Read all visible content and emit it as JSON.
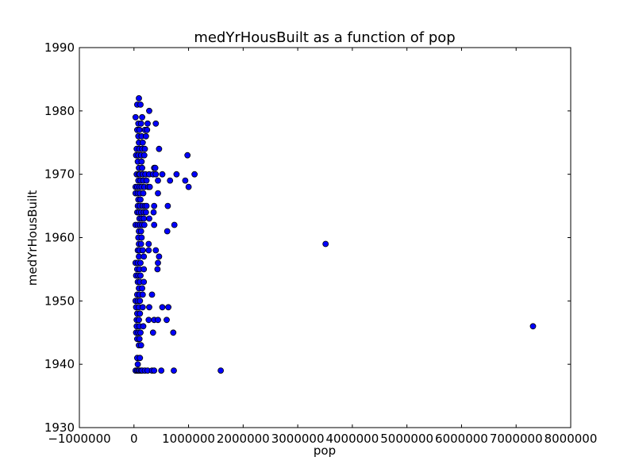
{
  "chart_data": {
    "type": "scatter",
    "title": "medYrHousBuilt as a function of pop",
    "xlabel": "pop",
    "ylabel": "medYrHousBuilt",
    "xlim": [
      -1000000,
      8000000
    ],
    "ylim": [
      1930,
      1990
    ],
    "xticks": [
      -1000000,
      0,
      1000000,
      2000000,
      3000000,
      4000000,
      5000000,
      6000000,
      7000000,
      8000000
    ],
    "yticks": [
      1930,
      1940,
      1950,
      1960,
      1970,
      1980,
      1990
    ],
    "grid": false,
    "marker_color": "#0000ff",
    "marker_edge_color": "#000000",
    "points": [
      [
        60000,
        1981
      ],
      [
        120000,
        1981
      ],
      [
        90000,
        1982
      ],
      [
        280000,
        1980
      ],
      [
        30000,
        1979
      ],
      [
        150000,
        1979
      ],
      [
        80000,
        1978
      ],
      [
        130000,
        1978
      ],
      [
        250000,
        1978
      ],
      [
        400000,
        1978
      ],
      [
        60000,
        1977
      ],
      [
        100000,
        1977
      ],
      [
        200000,
        1977
      ],
      [
        240000,
        1977
      ],
      [
        80000,
        1976
      ],
      [
        140000,
        1976
      ],
      [
        220000,
        1976
      ],
      [
        90000,
        1975
      ],
      [
        160000,
        1975
      ],
      [
        50000,
        1974
      ],
      [
        100000,
        1974
      ],
      [
        150000,
        1974
      ],
      [
        200000,
        1974
      ],
      [
        460000,
        1974
      ],
      [
        40000,
        1973
      ],
      [
        80000,
        1973
      ],
      [
        130000,
        1973
      ],
      [
        190000,
        1973
      ],
      [
        980000,
        1973
      ],
      [
        70000,
        1972
      ],
      [
        140000,
        1972
      ],
      [
        90000,
        1971
      ],
      [
        150000,
        1971
      ],
      [
        370000,
        1971
      ],
      [
        390000,
        1971
      ],
      [
        50000,
        1970
      ],
      [
        90000,
        1970
      ],
      [
        110000,
        1970
      ],
      [
        160000,
        1970
      ],
      [
        210000,
        1970
      ],
      [
        280000,
        1970
      ],
      [
        350000,
        1970
      ],
      [
        400000,
        1970
      ],
      [
        520000,
        1970
      ],
      [
        780000,
        1970
      ],
      [
        1110000,
        1970
      ],
      [
        80000,
        1969
      ],
      [
        120000,
        1969
      ],
      [
        170000,
        1969
      ],
      [
        230000,
        1969
      ],
      [
        440000,
        1969
      ],
      [
        660000,
        1969
      ],
      [
        940000,
        1969
      ],
      [
        30000,
        1968
      ],
      [
        60000,
        1968
      ],
      [
        100000,
        1968
      ],
      [
        140000,
        1968
      ],
      [
        190000,
        1968
      ],
      [
        260000,
        1968
      ],
      [
        290000,
        1968
      ],
      [
        1000000,
        1968
      ],
      [
        30000,
        1967
      ],
      [
        70000,
        1967
      ],
      [
        110000,
        1967
      ],
      [
        170000,
        1967
      ],
      [
        440000,
        1967
      ],
      [
        80000,
        1966
      ],
      [
        120000,
        1966
      ],
      [
        70000,
        1965
      ],
      [
        110000,
        1965
      ],
      [
        160000,
        1965
      ],
      [
        200000,
        1965
      ],
      [
        230000,
        1965
      ],
      [
        370000,
        1965
      ],
      [
        620000,
        1965
      ],
      [
        60000,
        1964
      ],
      [
        90000,
        1964
      ],
      [
        130000,
        1964
      ],
      [
        180000,
        1964
      ],
      [
        220000,
        1964
      ],
      [
        360000,
        1964
      ],
      [
        100000,
        1963
      ],
      [
        140000,
        1963
      ],
      [
        180000,
        1963
      ],
      [
        280000,
        1963
      ],
      [
        30000,
        1962
      ],
      [
        70000,
        1962
      ],
      [
        110000,
        1962
      ],
      [
        150000,
        1962
      ],
      [
        190000,
        1962
      ],
      [
        370000,
        1962
      ],
      [
        740000,
        1962
      ],
      [
        90000,
        1961
      ],
      [
        130000,
        1961
      ],
      [
        610000,
        1961
      ],
      [
        80000,
        1960
      ],
      [
        140000,
        1960
      ],
      [
        3510000,
        1959
      ],
      [
        90000,
        1959
      ],
      [
        130000,
        1959
      ],
      [
        270000,
        1959
      ],
      [
        70000,
        1958
      ],
      [
        100000,
        1958
      ],
      [
        160000,
        1958
      ],
      [
        270000,
        1958
      ],
      [
        400000,
        1958
      ],
      [
        90000,
        1957
      ],
      [
        180000,
        1957
      ],
      [
        460000,
        1957
      ],
      [
        30000,
        1956
      ],
      [
        70000,
        1956
      ],
      [
        120000,
        1956
      ],
      [
        440000,
        1956
      ],
      [
        60000,
        1955
      ],
      [
        100000,
        1955
      ],
      [
        180000,
        1955
      ],
      [
        430000,
        1955
      ],
      [
        40000,
        1954
      ],
      [
        80000,
        1954
      ],
      [
        120000,
        1954
      ],
      [
        70000,
        1953
      ],
      [
        110000,
        1953
      ],
      [
        180000,
        1953
      ],
      [
        90000,
        1952
      ],
      [
        150000,
        1952
      ],
      [
        60000,
        1951
      ],
      [
        100000,
        1951
      ],
      [
        160000,
        1951
      ],
      [
        330000,
        1951
      ],
      [
        30000,
        1950
      ],
      [
        70000,
        1950
      ],
      [
        110000,
        1950
      ],
      [
        40000,
        1949
      ],
      [
        90000,
        1949
      ],
      [
        160000,
        1949
      ],
      [
        280000,
        1949
      ],
      [
        520000,
        1949
      ],
      [
        630000,
        1949
      ],
      [
        60000,
        1948
      ],
      [
        110000,
        1948
      ],
      [
        50000,
        1947
      ],
      [
        90000,
        1947
      ],
      [
        270000,
        1947
      ],
      [
        370000,
        1947
      ],
      [
        440000,
        1947
      ],
      [
        600000,
        1947
      ],
      [
        50000,
        1946
      ],
      [
        100000,
        1946
      ],
      [
        170000,
        1946
      ],
      [
        7310000,
        1946
      ],
      [
        40000,
        1945
      ],
      [
        80000,
        1945
      ],
      [
        120000,
        1945
      ],
      [
        350000,
        1945
      ],
      [
        720000,
        1945
      ],
      [
        60000,
        1944
      ],
      [
        100000,
        1944
      ],
      [
        90000,
        1943
      ],
      [
        130000,
        1943
      ],
      [
        60000,
        1941
      ],
      [
        110000,
        1941
      ],
      [
        70000,
        1940
      ],
      [
        30000,
        1939
      ],
      [
        60000,
        1939
      ],
      [
        80000,
        1939
      ],
      [
        100000,
        1939
      ],
      [
        130000,
        1939
      ],
      [
        150000,
        1939
      ],
      [
        200000,
        1939
      ],
      [
        250000,
        1939
      ],
      [
        330000,
        1939
      ],
      [
        370000,
        1939
      ],
      [
        500000,
        1939
      ],
      [
        730000,
        1939
      ],
      [
        1590000,
        1939
      ]
    ]
  }
}
